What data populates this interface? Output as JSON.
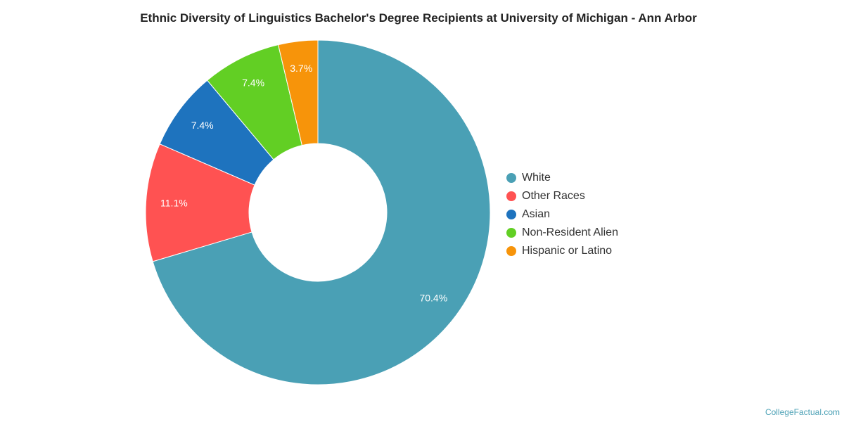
{
  "chart_data": {
    "type": "pie",
    "title": "Ethnic Diversity of Linguistics Bachelor's Degree Recipients at University of Michigan - Ann Arbor",
    "categories": [
      "White",
      "Other Races",
      "Asian",
      "Non-Resident Alien",
      "Hispanic or Latino"
    ],
    "values": [
      70.4,
      11.1,
      7.4,
      7.4,
      3.7
    ],
    "data_labels": [
      "70.4%",
      "11.1%",
      "7.4%",
      "7.4%",
      "3.7%"
    ],
    "colors": [
      "#4aa0b5",
      "#ff5252",
      "#1e73be",
      "#62cf24",
      "#f7940a"
    ],
    "legend_position": "right"
  },
  "credit": "CollegeFactual.com"
}
